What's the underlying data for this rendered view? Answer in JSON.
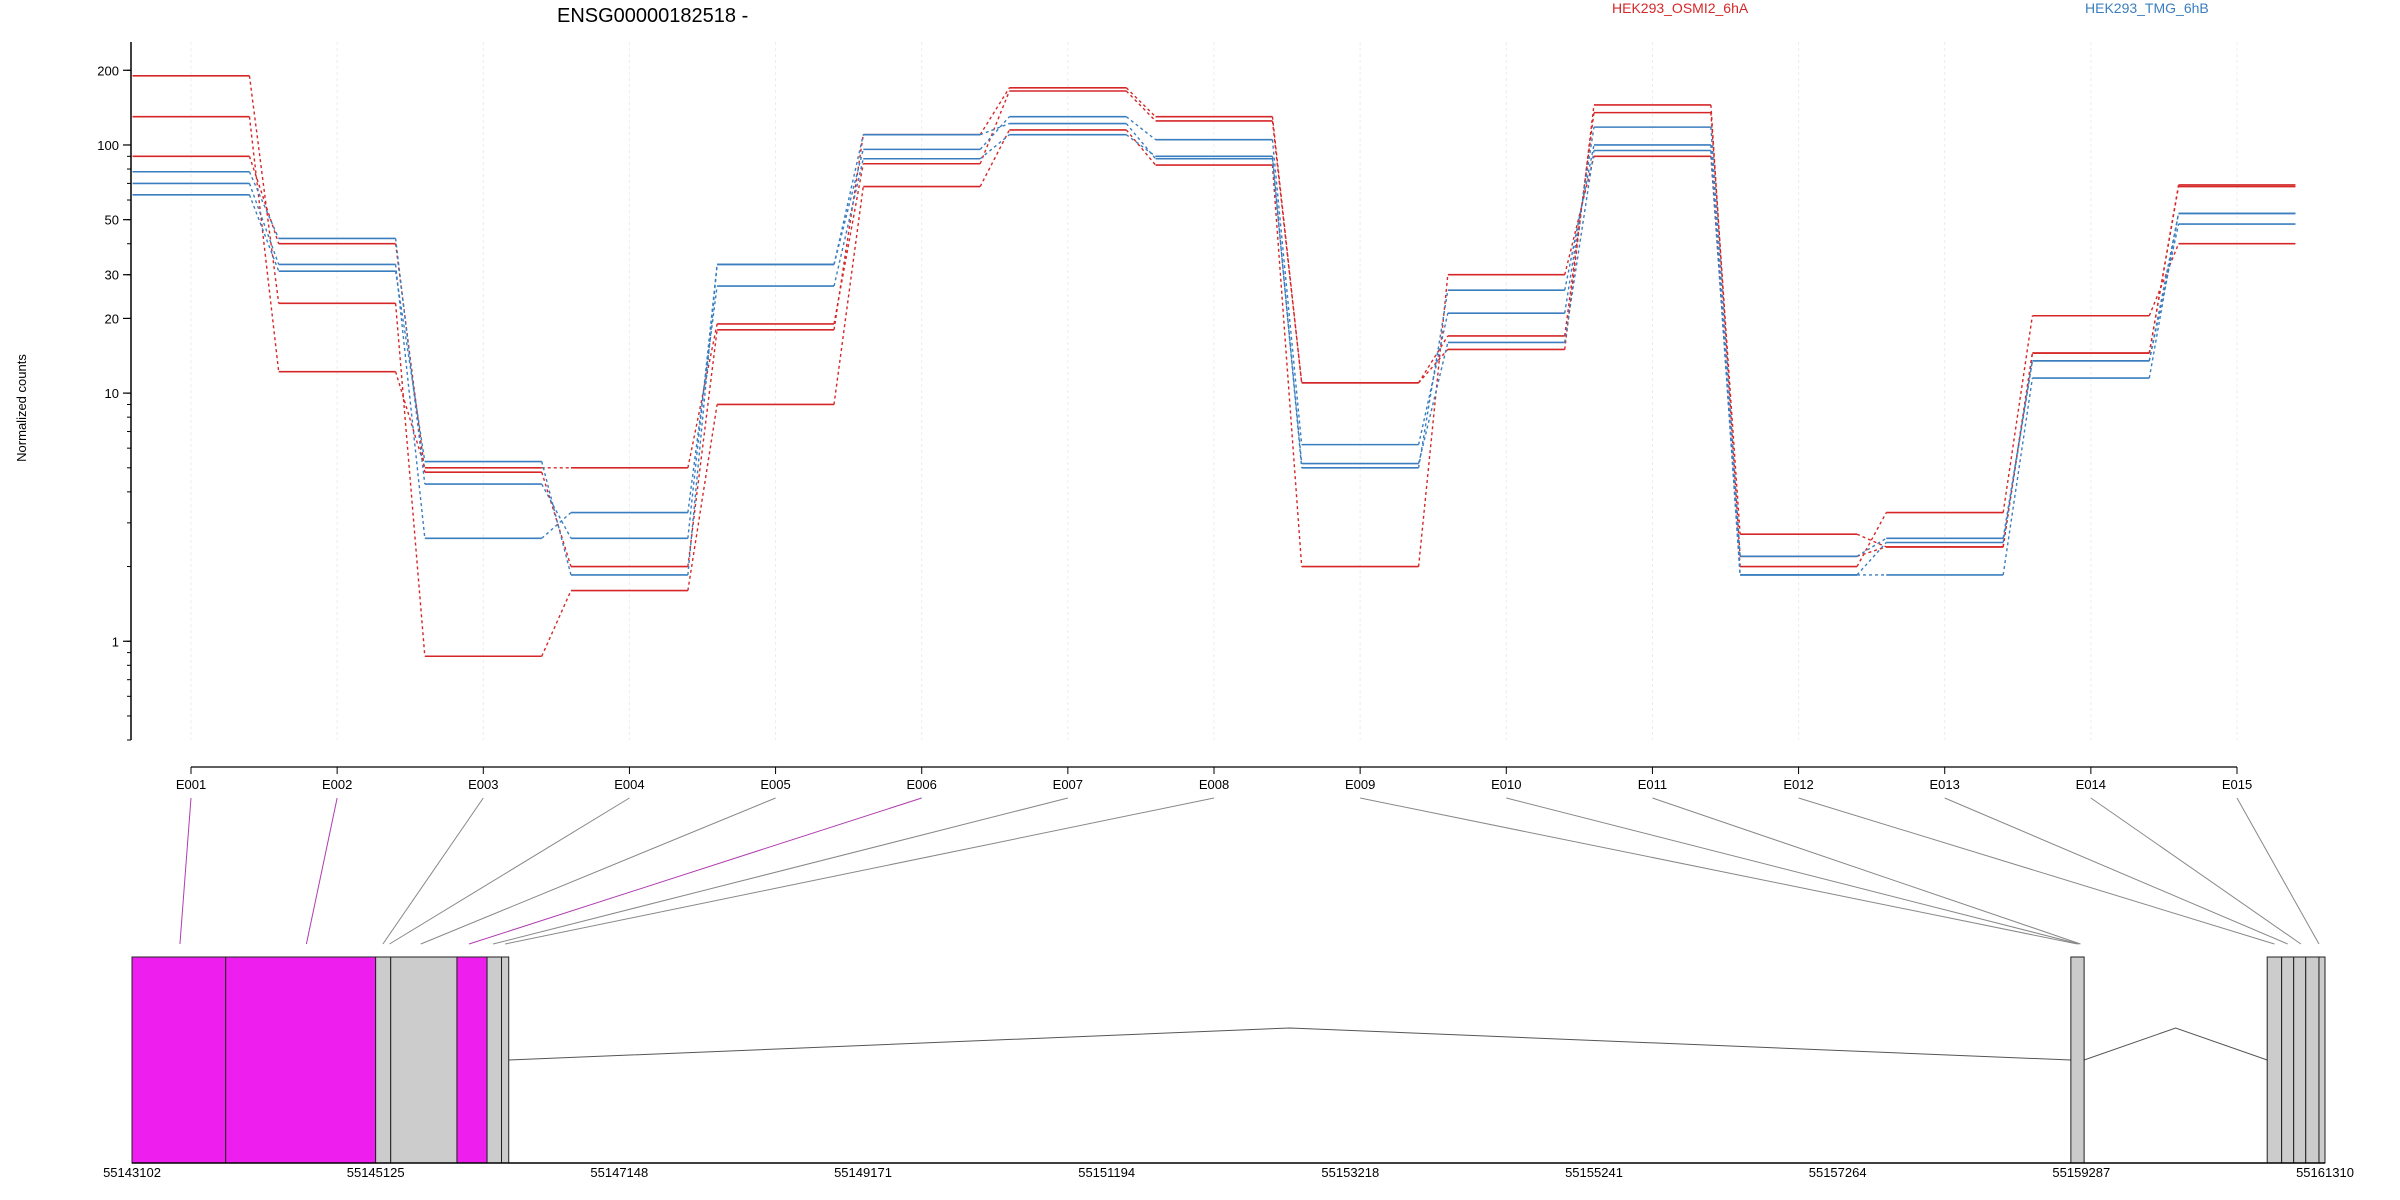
{
  "chart_data": {
    "type": "line",
    "title": "ENSG00000182518 -",
    "ylabel": "Normalized counts",
    "xlabel": "",
    "yscale": "log",
    "ylim": [
      0.4,
      260
    ],
    "yticks": [
      1,
      10,
      20,
      30,
      50,
      100,
      200
    ],
    "categories": [
      "E001",
      "E002",
      "E003",
      "E004",
      "E005",
      "E006",
      "E007",
      "E008",
      "E009",
      "E010",
      "E011",
      "E012",
      "E013",
      "E014",
      "E015"
    ],
    "legend": {
      "placement": "top-right",
      "entries": [
        {
          "name": "HEK293_OSMI2_6hA",
          "color": "#d62728"
        },
        {
          "name": "HEK293_TMG_6hB",
          "color": "#3a7ebf"
        }
      ]
    },
    "colors": {
      "osmi": "#d62728",
      "tmg": "#3a7ebf",
      "exon_highlight": "#ee1fee",
      "exon": "#cccccc",
      "connector_highlight": "#b03cb0",
      "connector": "#888888"
    },
    "series": [
      {
        "group": "osmi",
        "values": [
          190,
          23,
          0.87,
          1.6,
          9,
          68,
          115,
          83,
          2.0,
          30,
          90,
          2.0,
          3.3,
          20.5,
          40
        ]
      },
      {
        "group": "osmi",
        "values": [
          130,
          12.2,
          5.0,
          5.0,
          19,
          84,
          165,
          125,
          11,
          17,
          135,
          2.7,
          2.4,
          14.5,
          68
        ]
      },
      {
        "group": "osmi",
        "values": [
          90,
          40,
          4.8,
          2.0,
          18,
          110,
          170,
          130,
          11,
          15,
          145,
          2.2,
          2.4,
          14.5,
          69
        ]
      },
      {
        "group": "tmg",
        "values": [
          78,
          42,
          4.3,
          2.6,
          33,
          96,
          130,
          105,
          6.2,
          21,
          118,
          2.2,
          2.6,
          13.5,
          53
        ]
      },
      {
        "group": "tmg",
        "values": [
          70,
          33,
          2.6,
          3.3,
          27,
          88,
          110,
          90,
          5.0,
          26,
          100,
          1.85,
          2.5,
          13.5,
          48
        ]
      },
      {
        "group": "tmg",
        "values": [
          63,
          31,
          5.3,
          1.85,
          33,
          110,
          122,
          88,
          5.2,
          16,
          95,
          1.85,
          1.85,
          11.5,
          53
        ]
      }
    ],
    "gene_model": {
      "coordinate_ticks": [
        "55143102",
        "55145125",
        "55147148",
        "55149171",
        "55151194",
        "55153218",
        "55155241",
        "55157264",
        "55159287",
        "55161310"
      ],
      "coord_start": 55143102,
      "coord_end": 55161310,
      "exons": [
        {
          "id": "E001",
          "start": 55143102,
          "end": 55143880,
          "highlight": true
        },
        {
          "id": "E002",
          "start": 55143880,
          "end": 55145125,
          "highlight": true
        },
        {
          "id": "E003",
          "start": 55145125,
          "end": 55145250,
          "highlight": false
        },
        {
          "id": "E004",
          "start": 55145250,
          "end": 55145800,
          "highlight": false
        },
        {
          "id": "E005",
          "start": 55145800,
          "end": 55146050,
          "highlight": true
        },
        {
          "id": "E006",
          "start": 55146050,
          "end": 55146170,
          "highlight": false
        },
        {
          "id": "E007",
          "start": 55146170,
          "end": 55146230,
          "highlight": false
        },
        {
          "id": "E008",
          "start": 55159200,
          "end": 55159310,
          "highlight": false
        },
        {
          "id": "E009",
          "start": 55160830,
          "end": 55160950,
          "highlight": false
        },
        {
          "id": "E010",
          "start": 55160950,
          "end": 55161050,
          "highlight": false
        },
        {
          "id": "E011",
          "start": 55161050,
          "end": 55161150,
          "highlight": false
        },
        {
          "id": "E012",
          "start": 55161150,
          "end": 55161260,
          "highlight": false
        },
        {
          "id": "E013",
          "start": 55161260,
          "end": 55161310,
          "highlight": false
        }
      ],
      "bins": [
        {
          "label": "E001",
          "coord": 55143500,
          "highlight": true
        },
        {
          "label": "E002",
          "coord": 55144550,
          "highlight": true
        },
        {
          "label": "E003",
          "coord": 55145185,
          "highlight": false
        },
        {
          "label": "E004",
          "coord": 55145240,
          "highlight": false
        },
        {
          "label": "E005",
          "coord": 55145500,
          "highlight": false
        },
        {
          "label": "E006",
          "coord": 55145900,
          "highlight": true
        },
        {
          "label": "E007",
          "coord": 55146100,
          "highlight": false
        },
        {
          "label": "E008",
          "coord": 55146200,
          "highlight": false
        },
        {
          "label": "E009",
          "coord": 55159255,
          "highlight": false
        },
        {
          "label": "E010",
          "coord": 55159270,
          "highlight": false
        },
        {
          "label": "E011",
          "coord": 55159280,
          "highlight": false
        },
        {
          "label": "E012",
          "coord": 55160890,
          "highlight": false
        },
        {
          "label": "E013",
          "coord": 55161000,
          "highlight": false
        },
        {
          "label": "E014",
          "coord": 55161110,
          "highlight": false
        },
        {
          "label": "E015",
          "coord": 55161260,
          "highlight": false
        }
      ]
    }
  }
}
